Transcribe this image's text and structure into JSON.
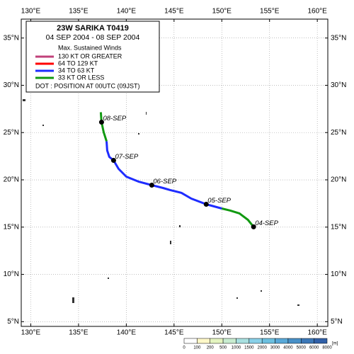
{
  "legend": {
    "title": "23W  SARIKA  T0419",
    "period": "04 SEP 2004 - 08 SEP 2004",
    "heading": "Max. Sustained Winds",
    "items": [
      {
        "label": "130 KT OR GREATER",
        "color": "#c0407a"
      },
      {
        "label": "64 TO 129 KT",
        "color": "#ff0000"
      },
      {
        "label": "34 TO 63 KT",
        "color": "#1e2cff"
      },
      {
        "label": "33 KT OR LESS",
        "color": "#119911"
      }
    ],
    "note": "DOT : POSITION AT 00UTC (09JST)"
  },
  "map": {
    "xlim": [
      129.0,
      161.1
    ],
    "ylim": [
      4.5,
      37.0
    ],
    "xticks": [
      {
        "value": 130,
        "label": "130°E"
      },
      {
        "value": 135,
        "label": "135°E"
      },
      {
        "value": 140,
        "label": "140°E"
      },
      {
        "value": 145,
        "label": "145°E"
      },
      {
        "value": 150,
        "label": "150°E"
      },
      {
        "value": 155,
        "label": "155°E"
      },
      {
        "value": 160,
        "label": "160°E"
      }
    ],
    "yticks": [
      {
        "value": 5,
        "label": "5°N"
      },
      {
        "value": 10,
        "label": "10°N"
      },
      {
        "value": 15,
        "label": "15°N"
      },
      {
        "value": 20,
        "label": "20°N"
      },
      {
        "value": 25,
        "label": "25°N"
      },
      {
        "value": 30,
        "label": "30°N"
      },
      {
        "value": 35,
        "label": "35°N"
      }
    ]
  },
  "track": {
    "segments": [
      {
        "color": "#119911",
        "lon": [
          153.33,
          152.74,
          151.85,
          150.89,
          150.0
        ],
        "lat": [
          15.03,
          15.77,
          16.45,
          16.75,
          16.97
        ]
      },
      {
        "color": "#1e2cff",
        "lon": [
          150.0,
          148.37,
          146.81,
          145.78,
          144.59,
          143.85,
          142.67,
          141.26,
          140.0,
          139.19,
          138.67,
          138.22,
          138.0,
          137.93
        ],
        "lat": [
          16.97,
          17.42,
          18.02,
          18.62,
          18.92,
          19.14,
          19.44,
          19.82,
          20.34,
          21.16,
          22.06,
          22.43,
          23.11,
          24.08
        ]
      },
      {
        "color": "#119911",
        "lon": [
          137.93,
          137.63,
          137.41,
          137.33
        ],
        "lat": [
          24.08,
          25.05,
          26.1,
          27.15
        ]
      }
    ],
    "positions": [
      {
        "label": "04-SEP",
        "lon": 153.33,
        "lat": 15.03
      },
      {
        "label": "05-SEP",
        "lon": 148.37,
        "lat": 17.42
      },
      {
        "label": "06-SEP",
        "lon": 142.67,
        "lat": 19.44
      },
      {
        "label": "07-SEP",
        "lon": 138.67,
        "lat": 22.06
      },
      {
        "label": "08-SEP",
        "lon": 137.41,
        "lat": 26.1
      }
    ]
  },
  "colorbar": {
    "labels": [
      "0",
      "100",
      "200",
      "500",
      "1000",
      "1500",
      "2000",
      "3000",
      "4000",
      "5000",
      "6000",
      "8000"
    ],
    "colors": [
      "#ffffff",
      "#fff8c8",
      "#e4f4c0",
      "#c8ecd0",
      "#a8e0e0",
      "#88d0e8",
      "#6cc0e0",
      "#58a8d8",
      "#4890c8",
      "#3c78b8",
      "#3060a8"
    ],
    "unit": "[m]"
  }
}
